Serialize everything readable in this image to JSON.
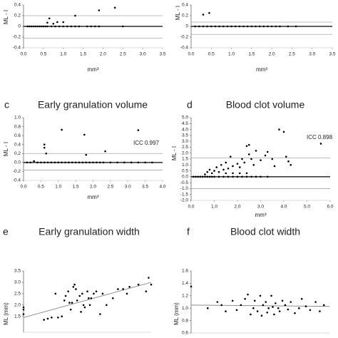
{
  "chart_data": [
    {
      "type": "scatter",
      "panel": "a-top",
      "xlabel": "mm³",
      "ylabel": "ML - I",
      "x": [
        0.1,
        0.15,
        0.2,
        0.25,
        0.3,
        0.35,
        0.4,
        0.45,
        0.5,
        0.55,
        0.6,
        0.7,
        0.8,
        0.9,
        1.0,
        1.1,
        1.2,
        1.3,
        1.4,
        1.6,
        1.7,
        1.8,
        1.9,
        2.5,
        0.6,
        0.65,
        0.75,
        0.85,
        1.0,
        1.3,
        1.9,
        2.3
      ],
      "y": [
        0,
        0,
        0,
        0,
        0,
        0,
        0,
        0,
        0,
        0,
        0,
        0,
        0,
        0,
        0,
        0,
        0,
        0,
        0,
        0,
        0,
        0,
        0,
        0,
        0.07,
        0.15,
        0.05,
        0.08,
        0.08,
        0.2,
        0.3,
        0.35
      ],
      "xlim": [
        0,
        3.5
      ],
      "ylim": [
        -0.4,
        0.4
      ],
      "xticks": [
        {
          "value": 0,
          "label": "0.0"
        },
        0.5,
        {
          "value": 1,
          "label": "1.0"
        },
        1.5,
        {
          "value": 2,
          "label": "2.0"
        },
        2.5,
        {
          "value": 3,
          "label": "3.0"
        },
        3.5
      ],
      "yticks": [
        -0.4,
        -0.2,
        0,
        0.2,
        0.4
      ],
      "reference_lines": [
        {
          "value": 0.2,
          "color": "#a6a6a6"
        },
        {
          "value": 0,
          "color": "#000000"
        },
        {
          "value": -0.22,
          "color": "#a6a6a6"
        }
      ],
      "color": "#000000"
    },
    {
      "type": "scatter",
      "panel": "b-top",
      "xlabel": "mm³",
      "ylabel": "ML - I",
      "x": [
        0.1,
        0.2,
        0.3,
        0.4,
        0.5,
        0.6,
        0.7,
        0.8,
        0.9,
        1.0,
        1.1,
        1.2,
        1.3,
        1.4,
        1.5,
        1.6,
        1.7,
        1.8,
        1.9,
        2.0,
        2.1,
        2.2,
        2.4,
        2.6,
        0.3,
        0.45
      ],
      "y": [
        0,
        0,
        0,
        0,
        0,
        0,
        0,
        0,
        0,
        0,
        0,
        0,
        0,
        0,
        0,
        0,
        0,
        0,
        0,
        0,
        0,
        0,
        0,
        0,
        0.22,
        0.25
      ],
      "xlim": [
        0,
        3.5
      ],
      "ylim": [
        -0.4,
        0.4
      ],
      "xticks": [
        {
          "value": 0,
          "label": "0.0"
        },
        0.5,
        {
          "value": 1,
          "label": "1.0"
        },
        1.5,
        {
          "value": 2,
          "label": "2.0"
        },
        2.5,
        {
          "value": 3,
          "label": "3.0"
        },
        3.5
      ],
      "yticks": [
        -0.4,
        -0.2,
        0,
        0.2,
        0.4
      ],
      "reference_lines": [
        {
          "value": 0.08,
          "color": "#a6a6a6"
        },
        {
          "value": 0,
          "color": "#000000"
        },
        {
          "value": -0.15,
          "color": "#a6a6a6"
        }
      ],
      "color": "#000000"
    },
    {
      "type": "scatter",
      "panel": "c",
      "title": "Early granulation volume",
      "xlabel": "mm³",
      "ylabel": "ML - I",
      "annotation": "ICC 0.997",
      "x": [
        0.1,
        0.2,
        0.3,
        0.4,
        0.5,
        0.6,
        0.7,
        0.8,
        0.9,
        1.0,
        1.1,
        1.2,
        1.3,
        1.4,
        1.5,
        1.6,
        1.7,
        1.8,
        1.9,
        2.0,
        2.1,
        2.2,
        2.3,
        2.5,
        2.7,
        2.9,
        3.1,
        3.3,
        3.5,
        3.7,
        0.6,
        0.6,
        0.65,
        1.1,
        1.75,
        1.8,
        2.35,
        3.3
      ],
      "y": [
        0,
        0,
        0.03,
        0,
        0,
        0,
        0,
        0,
        0,
        0,
        0,
        0,
        0,
        0,
        0,
        0,
        0,
        0,
        0,
        0,
        0,
        0,
        0,
        0,
        0,
        0,
        0,
        0,
        0,
        0,
        0.4,
        0.33,
        0.2,
        0.73,
        0.62,
        0.17,
        0.25,
        0.72
      ],
      "xlim": [
        0,
        4
      ],
      "ylim": [
        -0.4,
        1
      ],
      "xticks": [
        {
          "value": 0,
          "label": "0.0"
        },
        0.5,
        {
          "value": 1,
          "label": "1.0"
        },
        1.5,
        {
          "value": 2,
          "label": "2.0"
        },
        2.5,
        {
          "value": 3,
          "label": "3.0"
        },
        3.5,
        {
          "value": 4,
          "label": "4.0"
        }
      ],
      "yticks": [
        -0.4,
        -0.2,
        {
          "value": 0,
          "label": "0.0"
        },
        0.2,
        0.4,
        0.6,
        0.8,
        {
          "value": 1,
          "label": "1.0"
        }
      ],
      "reference_lines": [
        {
          "value": 0.2,
          "color": "#a6a6a6"
        },
        {
          "value": 0,
          "color": "#000000"
        },
        {
          "value": -0.17,
          "color": "#a6a6a6"
        }
      ],
      "color": "#000000"
    },
    {
      "type": "scatter",
      "panel": "d",
      "title": "Blood clot volume",
      "xlabel": "mm³",
      "ylabel": "ML - I",
      "annotation": "ICC 0.898",
      "x": [
        0.1,
        0.2,
        0.3,
        0.4,
        0.5,
        0.6,
        0.7,
        0.8,
        0.9,
        1.0,
        1.2,
        1.4,
        1.6,
        1.8,
        2.0,
        2.2,
        2.4,
        2.6,
        2.8,
        3.0,
        3.3,
        1.5,
        1.8,
        2.1,
        2.4,
        0.6,
        0.7,
        0.8,
        0.9,
        1.0,
        1.1,
        1.2,
        1.3,
        1.4,
        1.5,
        1.6,
        1.7,
        1.8,
        2.0,
        2.1,
        2.2,
        2.3,
        2.4,
        2.5,
        2.5,
        2.6,
        2.7,
        2.8,
        3.0,
        3.2,
        3.3,
        3.5,
        3.6,
        3.8,
        4.0,
        4.1,
        4.2,
        4.3,
        5.6
      ],
      "y": [
        0,
        0,
        0,
        0,
        0,
        0,
        0,
        0,
        0,
        0,
        0,
        0,
        0,
        0,
        0,
        0,
        0,
        0,
        0,
        0,
        0,
        0.3,
        0.3,
        0.3,
        0.3,
        0.2,
        0.4,
        0.6,
        0.3,
        0.5,
        0.8,
        0.4,
        1.0,
        0.6,
        1.2,
        0.7,
        1.7,
        0.9,
        1.1,
        0.8,
        1.5,
        1.2,
        2.6,
        2.7,
        1.9,
        1.5,
        1.0,
        2.2,
        1.4,
        1.8,
        2.1,
        1.5,
        0.9,
        4.0,
        3.8,
        1.7,
        1.3,
        1.0,
        2.8
      ],
      "xlim": [
        0,
        6
      ],
      "ylim": [
        -2,
        5
      ],
      "xticks": [
        {
          "value": 0,
          "label": "0.0"
        },
        {
          "value": 1,
          "label": "1.0"
        },
        {
          "value": 2,
          "label": "2.0"
        },
        {
          "value": 3,
          "label": "3.0"
        },
        {
          "value": 4,
          "label": "4.0"
        },
        {
          "value": 5,
          "label": "5.0"
        },
        {
          "value": 6,
          "label": "6.0"
        }
      ],
      "yticks": [
        {
          "value": -2,
          "label": "-2.0"
        },
        -1.5,
        {
          "value": -1,
          "label": "-1.0"
        },
        -0.5,
        {
          "value": 0,
          "label": "0.0"
        },
        0.5,
        {
          "value": 1,
          "label": "1.0"
        },
        1.5,
        {
          "value": 2,
          "label": "2.0"
        },
        2.5,
        {
          "value": 3,
          "label": "3.0"
        },
        3.5,
        {
          "value": 4,
          "label": "4.0"
        },
        4.5,
        {
          "value": 5,
          "label": "5.0"
        }
      ],
      "reference_lines": [
        {
          "value": 1.6,
          "color": "#a6a6a6"
        },
        {
          "value": 0,
          "color": "#000000"
        },
        {
          "value": -1,
          "color": "#a6a6a6"
        }
      ],
      "color": "#000000"
    },
    {
      "type": "scatter",
      "panel": "e",
      "title": "Early granulation width",
      "ylabel": "ML (mm)",
      "x": [
        0,
        0,
        0,
        1.6,
        1.9,
        2.2,
        2.7,
        2.5,
        3.0,
        3.2,
        3.3,
        3.5,
        3.6,
        3.7,
        3.8,
        3.9,
        4.0,
        4.1,
        4.2,
        4.4,
        4.5,
        4.6,
        4.7,
        4.8,
        5.0,
        5.1,
        5.2,
        5.3,
        5.5,
        5.7,
        6.0,
        6.2,
        6.5,
        7.0,
        7.4,
        7.8,
        8.1,
        8.3,
        9.0,
        9.6,
        9.8,
        10.0
      ],
      "y": [
        1.8,
        1.9,
        1.6,
        1.35,
        1.4,
        1.45,
        1.45,
        2.5,
        1.5,
        2.2,
        2.4,
        2.6,
        2.1,
        1.8,
        2.1,
        2.8,
        2.9,
        2.7,
        2.2,
        2.4,
        1.7,
        2.5,
        2.0,
        1.9,
        2.6,
        2.3,
        2.0,
        2.3,
        2.5,
        2.6,
        1.6,
        2.5,
        2.0,
        2.3,
        2.7,
        2.7,
        2.5,
        2.8,
        2.9,
        2.6,
        3.2,
        2.9
      ],
      "xlim": [
        0,
        10
      ],
      "ylim": [
        0.8,
        3.5
      ],
      "yticks": [
        1.5,
        {
          "value": 2,
          "label": "2.0"
        },
        2.5,
        {
          "value": 3,
          "label": "3.0"
        },
        3.5
      ],
      "fit_line": {
        "x": [
          0,
          10
        ],
        "y": [
          1.45,
          3.0
        ],
        "color": "#8c8c8c"
      },
      "color": "#000000"
    },
    {
      "type": "scatter",
      "panel": "f",
      "title": "Blood clot width",
      "ylabel": "ML (mm)",
      "x": [
        0,
        1.2,
        1.9,
        2.2,
        2.5,
        3.0,
        3.3,
        3.6,
        3.9,
        4.1,
        4.3,
        4.5,
        4.6,
        4.8,
        5.0,
        5.1,
        5.2,
        5.4,
        5.5,
        5.6,
        5.8,
        5.9,
        6.0,
        6.1,
        6.3,
        6.4,
        6.6,
        6.8,
        7.0,
        7.2,
        7.5,
        7.8,
        8.0,
        8.3,
        8.6,
        9.0,
        9.3,
        9.6
      ],
      "y": [
        1.35,
        1.0,
        1.1,
        1.05,
        0.95,
        1.12,
        0.97,
        1.05,
        1.15,
        1.22,
        0.9,
        1.0,
        1.12,
        0.95,
        1.2,
        0.88,
        1.05,
        1.1,
        0.93,
        1.0,
        1.2,
        1.02,
        0.9,
        1.08,
        1.0,
        0.95,
        1.12,
        1.05,
        0.98,
        1.1,
        0.92,
        1.0,
        1.15,
        1.03,
        0.97,
        1.1,
        0.95,
        1.05
      ],
      "xlim": [
        0,
        10
      ],
      "ylim": [
        0.6,
        1.6
      ],
      "yticks": [
        0.6,
        0.8,
        {
          "value": 1,
          "label": "1.0"
        },
        1.2,
        1.4,
        1.6
      ],
      "fit_line": {
        "x": [
          0,
          10
        ],
        "y": [
          1.05,
          1.03
        ],
        "color": "#8c8c8c"
      },
      "color": "#000000"
    }
  ]
}
